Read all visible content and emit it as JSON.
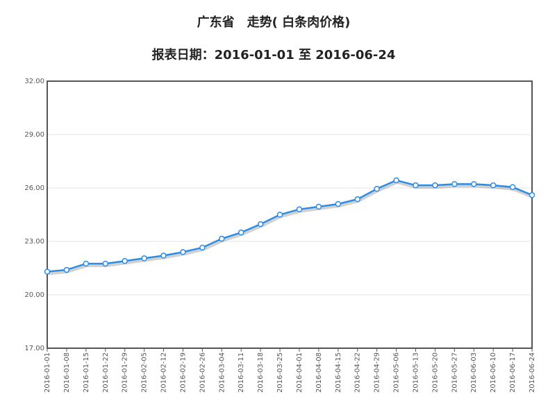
{
  "chart_data": {
    "type": "line",
    "title": "广东省　走势( 白条肉价格)",
    "subtitle": "报表日期：2016-01-01 至 2016-06-24",
    "categories": [
      "2016-01-01",
      "2016-01-08",
      "2016-01-15",
      "2016-01-22",
      "2016-01-29",
      "2016-02-05",
      "2016-02-12",
      "2016-02-19",
      "2016-02-26",
      "2016-03-04",
      "2016-03-11",
      "2016-03-18",
      "2016-03-25",
      "2016-04-01",
      "2016-04-08",
      "2016-04-15",
      "2016-04-22",
      "2016-04-29",
      "2016-05-06",
      "2016-05-13",
      "2016-05-20",
      "2016-05-27",
      "2016-06-03",
      "2016-06-10",
      "2016-06-17",
      "2016-06-24"
    ],
    "values": [
      21.3,
      21.4,
      21.75,
      21.75,
      21.9,
      22.05,
      22.2,
      22.4,
      22.65,
      23.15,
      23.5,
      23.97,
      24.5,
      24.8,
      24.95,
      25.1,
      25.37,
      25.95,
      26.43,
      26.15,
      26.15,
      26.22,
      26.22,
      26.15,
      26.05,
      25.6
    ],
    "color": "#2b8ce6",
    "ylim": [
      17,
      32
    ],
    "yticks": [
      {
        "value": 17,
        "label": "17.00"
      },
      {
        "value": 20,
        "label": "20.00"
      },
      {
        "value": 23,
        "label": "23.00"
      },
      {
        "value": 26,
        "label": "26.00"
      },
      {
        "value": 29,
        "label": "29.00"
      },
      {
        "value": 32,
        "label": "32.00"
      }
    ],
    "grid": true
  }
}
